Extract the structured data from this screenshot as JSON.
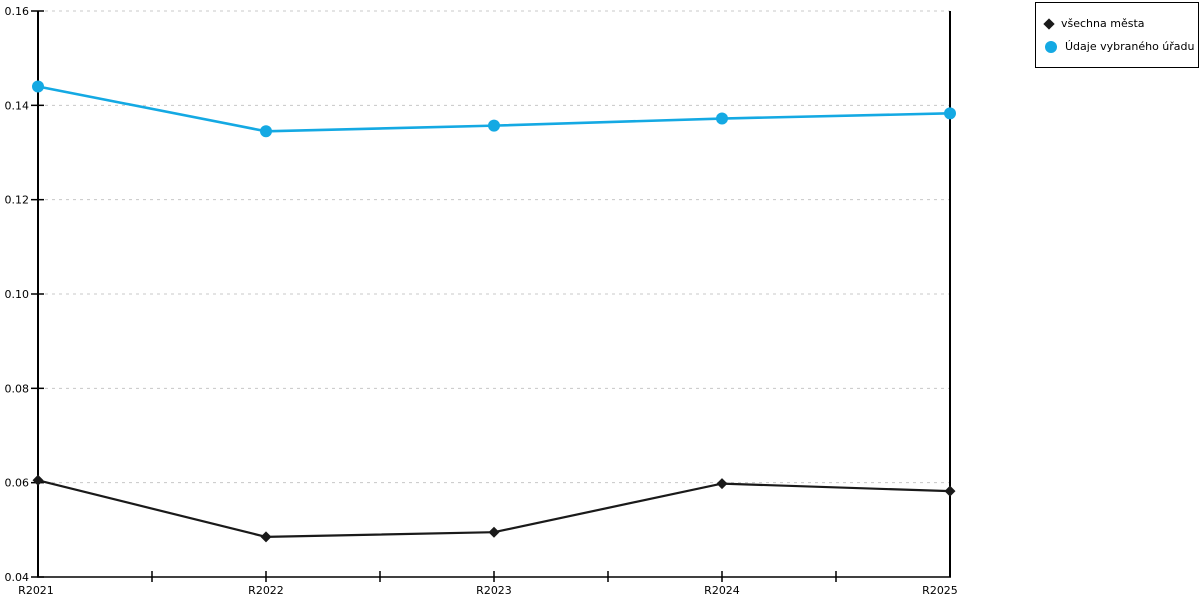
{
  "chart_data": {
    "type": "line",
    "title": "",
    "xlabel": "",
    "ylabel": "",
    "categories": [
      "R2021",
      "R2022",
      "R2023",
      "R2024",
      "R2025"
    ],
    "series": [
      {
        "name": "všechna města",
        "marker": "diamond",
        "color": "#1a1a1a",
        "values": [
          0.0605,
          0.0485,
          0.0495,
          0.0598,
          0.0582
        ]
      },
      {
        "name": "Údaje vybraného úřadu",
        "marker": "circle",
        "color": "#14A9E3",
        "values": [
          0.144,
          0.1345,
          0.1357,
          0.1372,
          0.1383
        ]
      }
    ],
    "ylim": [
      0.04,
      0.16
    ],
    "ytick_step": 0.02,
    "ytick_labels": [
      "0.04",
      "0.06",
      "0.08",
      "0.10",
      "0.12",
      "0.14",
      "0.16"
    ],
    "grid": {
      "horizontal": true,
      "style": "dashed",
      "color": "#c8c8c8"
    },
    "axis_color": "#000000",
    "legend_position": "top-right"
  }
}
